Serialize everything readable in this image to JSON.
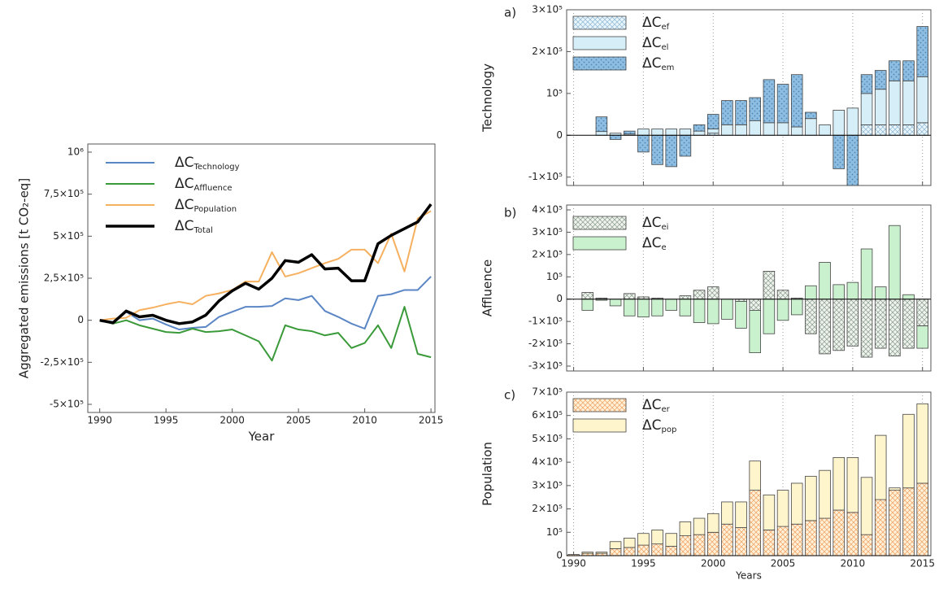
{
  "chart_data": [
    {
      "type": "line",
      "ylabel": "Aggregated emissions [t CO₂-eq]",
      "xlabel": "Year",
      "legend_prefix": "ΔC",
      "x": [
        1990,
        1991,
        1992,
        1993,
        1994,
        1995,
        1996,
        1997,
        1998,
        1999,
        2000,
        2001,
        2002,
        2003,
        2004,
        2005,
        2006,
        2007,
        2008,
        2009,
        2010,
        2011,
        2012,
        2013,
        2014,
        2015
      ],
      "xlim": [
        1989.1,
        2015.3
      ],
      "xticks": [
        1990,
        1995,
        2000,
        2005,
        2010,
        2015
      ],
      "ylim": [
        -500000,
        1000000
      ],
      "yticks": [
        {
          "value": -500000,
          "label": "-5×10⁵"
        },
        {
          "value": -250000,
          "label": "-2,5×10⁵"
        },
        0,
        {
          "value": 250000,
          "label": "2,5×10⁵"
        },
        {
          "value": 500000,
          "label": "5×10⁵"
        },
        {
          "value": 750000,
          "label": "7,5×10⁵"
        },
        {
          "value": 1000000,
          "label": "10⁶"
        }
      ],
      "series": [
        {
          "name": "Technology",
          "color": "#5b86c5",
          "width": 2,
          "values": [
            0,
            -10000,
            50000,
            0,
            10000,
            -25000,
            -55000,
            -45000,
            -40000,
            20000,
            50000,
            80000,
            80000,
            85000,
            130000,
            120000,
            145000,
            55000,
            20000,
            -20000,
            -50000,
            145000,
            155000,
            180000,
            180000,
            260000
          ]
        },
        {
          "name": "Affluence",
          "color": "#3a9a3a",
          "width": 2,
          "values": [
            0,
            -20000,
            0,
            -30000,
            -50000,
            -70000,
            -75000,
            -50000,
            -70000,
            -65000,
            -55000,
            -90000,
            -125000,
            -240000,
            -30000,
            -55000,
            -65000,
            -90000,
            -75000,
            -165000,
            -135000,
            -30000,
            -165000,
            80000,
            -200000,
            -220000
          ]
        },
        {
          "name": "Population",
          "color": "#f5b060",
          "width": 2,
          "values": [
            0,
            10000,
            15000,
            60000,
            75000,
            95000,
            110000,
            95000,
            145000,
            160000,
            180000,
            230000,
            230000,
            405000,
            260000,
            280000,
            310000,
            340000,
            365000,
            420000,
            420000,
            340000,
            515000,
            290000,
            605000,
            650000
          ]
        },
        {
          "name": "Total",
          "color": "#000000",
          "width": 3.5,
          "values": [
            0,
            -15000,
            55000,
            20000,
            30000,
            0,
            -20000,
            -10000,
            30000,
            115000,
            175000,
            220000,
            185000,
            250000,
            355000,
            345000,
            390000,
            305000,
            310000,
            235000,
            235000,
            455000,
            505000,
            545000,
            585000,
            690000
          ]
        }
      ]
    },
    {
      "type": "bar",
      "stacked": true,
      "panel_label": "a)",
      "ylabel": "Technology",
      "legend_prefix": "ΔC",
      "xgrid": true,
      "xtick_labels": false,
      "x": [
        1990,
        1991,
        1992,
        1993,
        1994,
        1995,
        1996,
        1997,
        1998,
        1999,
        2000,
        2001,
        2002,
        2003,
        2004,
        2005,
        2006,
        2007,
        2008,
        2009,
        2010,
        2011,
        2012,
        2013,
        2014,
        2015
      ],
      "xlim": [
        1989.5,
        2015.6
      ],
      "xticks": [
        1990,
        1995,
        2000,
        2005,
        2010,
        2015
      ],
      "ylim": [
        -120000,
        300000
      ],
      "yticks": [
        {
          "value": -100000,
          "label": "-1×10⁵"
        },
        0,
        {
          "value": 100000,
          "label": "10⁵"
        },
        {
          "value": 200000,
          "label": "2×10⁵"
        },
        {
          "value": 300000,
          "label": "3×10⁵"
        }
      ],
      "series": [
        {
          "name": "ef",
          "color": "#e8f5fb",
          "pattern": "crosshatch",
          "pattern_color": "#8cb7d4",
          "values": [
            0,
            0,
            0,
            0,
            0,
            0,
            0,
            0,
            0,
            0,
            5000,
            0,
            0,
            0,
            0,
            0,
            0,
            0,
            0,
            0,
            0,
            25000,
            25000,
            25000,
            25000,
            30000
          ]
        },
        {
          "name": "el",
          "color": "#d5eef8",
          "pattern": "none",
          "values": [
            0,
            0,
            9000,
            5000,
            3000,
            15000,
            15000,
            15000,
            15000,
            10000,
            10000,
            25000,
            25000,
            35000,
            30000,
            30000,
            20000,
            40000,
            25000,
            60000,
            65000,
            75000,
            85000,
            105000,
            105000,
            110000
          ]
        },
        {
          "name": "em",
          "color": "#8dbde0",
          "pattern": "dots",
          "pattern_color": "#4f86b8",
          "values": [
            0,
            0,
            35000,
            -10000,
            7000,
            -40000,
            -70000,
            -75000,
            -50000,
            15000,
            35000,
            58000,
            58000,
            55000,
            103000,
            92000,
            125000,
            15000,
            0,
            -80000,
            -120000,
            45000,
            45000,
            48000,
            48000,
            120000
          ]
        }
      ]
    },
    {
      "type": "bar",
      "stacked": true,
      "panel_label": "b)",
      "ylabel": "Affluence",
      "legend_prefix": "ΔC",
      "xgrid": true,
      "xtick_labels": false,
      "x": [
        1990,
        1991,
        1992,
        1993,
        1994,
        1995,
        1996,
        1997,
        1998,
        1999,
        2000,
        2001,
        2002,
        2003,
        2004,
        2005,
        2006,
        2007,
        2008,
        2009,
        2010,
        2011,
        2012,
        2013,
        2014,
        2015
      ],
      "xlim": [
        1989.5,
        2015.6
      ],
      "xticks": [
        1990,
        1995,
        2000,
        2005,
        2010,
        2015
      ],
      "ylim": [
        -300000,
        400000
      ],
      "yticks": [
        {
          "value": -300000,
          "label": "-3×10⁵"
        },
        {
          "value": -200000,
          "label": "-2×10⁵"
        },
        {
          "value": -100000,
          "label": "-1×10⁵"
        },
        0,
        {
          "value": 100000,
          "label": "10⁵"
        },
        {
          "value": 200000,
          "label": "2×10⁵"
        },
        {
          "value": 300000,
          "label": "3×10⁵"
        },
        {
          "value": 400000,
          "label": "4×10⁵"
        }
      ],
      "series": [
        {
          "name": "ei",
          "color": "#eef3ee",
          "pattern": "crosshatch",
          "pattern_color": "#8a9a8a",
          "values": [
            0,
            30000,
            5000,
            0,
            25000,
            10000,
            5000,
            0,
            15000,
            40000,
            55000,
            0,
            -10000,
            -50000,
            125000,
            40000,
            5000,
            -155000,
            -245000,
            -230000,
            -210000,
            -260000,
            -220000,
            -255000,
            -220000,
            -120000
          ]
        },
        {
          "name": "e",
          "color": "#c9f1cd",
          "pattern": "none",
          "values": [
            0,
            -50000,
            -5000,
            -30000,
            -75000,
            -80000,
            -75000,
            -50000,
            -75000,
            -105000,
            -110000,
            -90000,
            -120000,
            -190000,
            -155000,
            -95000,
            -70000,
            60000,
            165000,
            65000,
            75000,
            225000,
            55000,
            330000,
            20000,
            -100000
          ]
        }
      ]
    },
    {
      "type": "bar",
      "stacked": true,
      "panel_label": "c)",
      "ylabel": "Population",
      "xlabel": "Years",
      "legend_prefix": "ΔC",
      "xgrid": true,
      "xtick_labels": true,
      "x": [
        1990,
        1991,
        1992,
        1993,
        1994,
        1995,
        1996,
        1997,
        1998,
        1999,
        2000,
        2001,
        2002,
        2003,
        2004,
        2005,
        2006,
        2007,
        2008,
        2009,
        2010,
        2011,
        2012,
        2013,
        2014,
        2015
      ],
      "xlim": [
        1989.5,
        2015.6
      ],
      "xticks": [
        1990,
        1995,
        2000,
        2005,
        2010,
        2015
      ],
      "ylim": [
        0,
        700000
      ],
      "yticks": [
        0,
        {
          "value": 100000,
          "label": "10⁵"
        },
        {
          "value": 200000,
          "label": "2×10⁵"
        },
        {
          "value": 300000,
          "label": "3×10⁵"
        },
        {
          "value": 400000,
          "label": "4×10⁵"
        },
        {
          "value": 500000,
          "label": "5×10⁵"
        },
        {
          "value": 600000,
          "label": "6×10⁵"
        },
        {
          "value": 700000,
          "label": "7×10⁵"
        }
      ],
      "series": [
        {
          "name": "er",
          "color": "#fff0d8",
          "pattern": "crosshatch",
          "pattern_color": "#f0a060",
          "values": [
            5000,
            10000,
            10000,
            30000,
            35000,
            45000,
            50000,
            40000,
            85000,
            90000,
            100000,
            135000,
            120000,
            280000,
            110000,
            125000,
            135000,
            150000,
            160000,
            195000,
            185000,
            90000,
            240000,
            280000,
            290000,
            310000
          ]
        },
        {
          "name": "pop",
          "color": "#fff5cc",
          "pattern": "none",
          "values": [
            0,
            5000,
            5000,
            30000,
            40000,
            50000,
            60000,
            55000,
            60000,
            70000,
            80000,
            95000,
            110000,
            125000,
            150000,
            155000,
            175000,
            190000,
            205000,
            225000,
            235000,
            245000,
            275000,
            10000,
            315000,
            340000
          ]
        }
      ]
    }
  ]
}
